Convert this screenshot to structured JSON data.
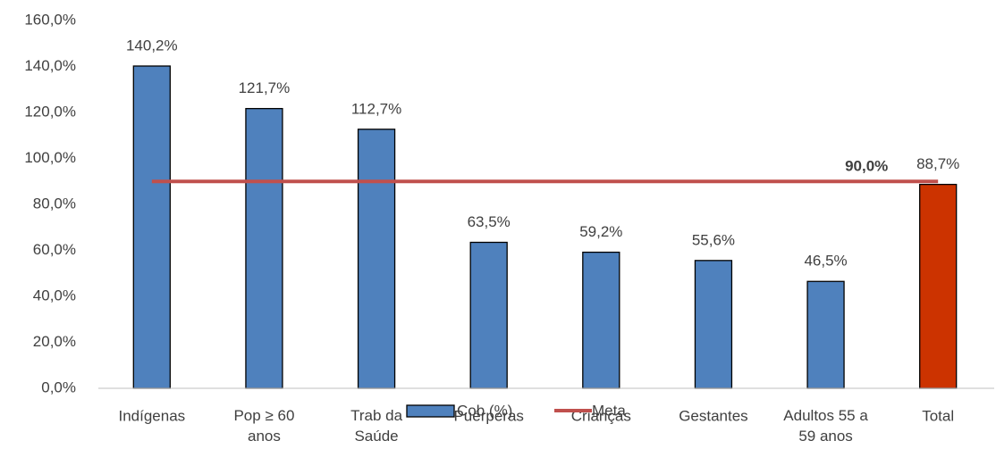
{
  "chart_data": {
    "type": "bar",
    "categories": [
      "Indígenas",
      "Pop ≥ 60\nanos",
      "Trab da\nSaúde",
      "Puérperas",
      "Crianças",
      "Gestantes",
      "Adultos 55 a\n59 anos",
      "Total"
    ],
    "series": [
      {
        "name": "Cob (%)",
        "type": "bar",
        "color": "#4f81bd",
        "colors": [
          "#4f81bd",
          "#4f81bd",
          "#4f81bd",
          "#4f81bd",
          "#4f81bd",
          "#4f81bd",
          "#4f81bd",
          "#cc3300"
        ],
        "values": [
          140.2,
          121.7,
          112.7,
          63.5,
          59.2,
          55.6,
          46.5,
          88.7
        ],
        "value_labels": [
          "140,2%",
          "121,7%",
          "112,7%",
          "63,5%",
          "59,2%",
          "55,6%",
          "46,5%",
          "88,7%"
        ]
      },
      {
        "name": "Meta",
        "type": "line",
        "color": "#c0504d",
        "values": [
          90,
          90,
          90,
          90,
          90,
          90,
          90,
          90
        ],
        "value_labels": [
          null,
          null,
          null,
          null,
          null,
          null,
          null,
          "90,0%"
        ]
      }
    ],
    "ylim": [
      0,
      160
    ],
    "yticks": [
      {
        "value": 0,
        "label": "0,0%"
      },
      {
        "value": 20,
        "label": "20,0%"
      },
      {
        "value": 40,
        "label": "40,0%"
      },
      {
        "value": 60,
        "label": "60,0%"
      },
      {
        "value": 80,
        "label": "80,0%"
      },
      {
        "value": 100,
        "label": "100,0%"
      },
      {
        "value": 120,
        "label": "120,0%"
      },
      {
        "value": 140,
        "label": "140,0%"
      },
      {
        "value": 160,
        "label": "160,0%"
      }
    ],
    "grid": false
  }
}
